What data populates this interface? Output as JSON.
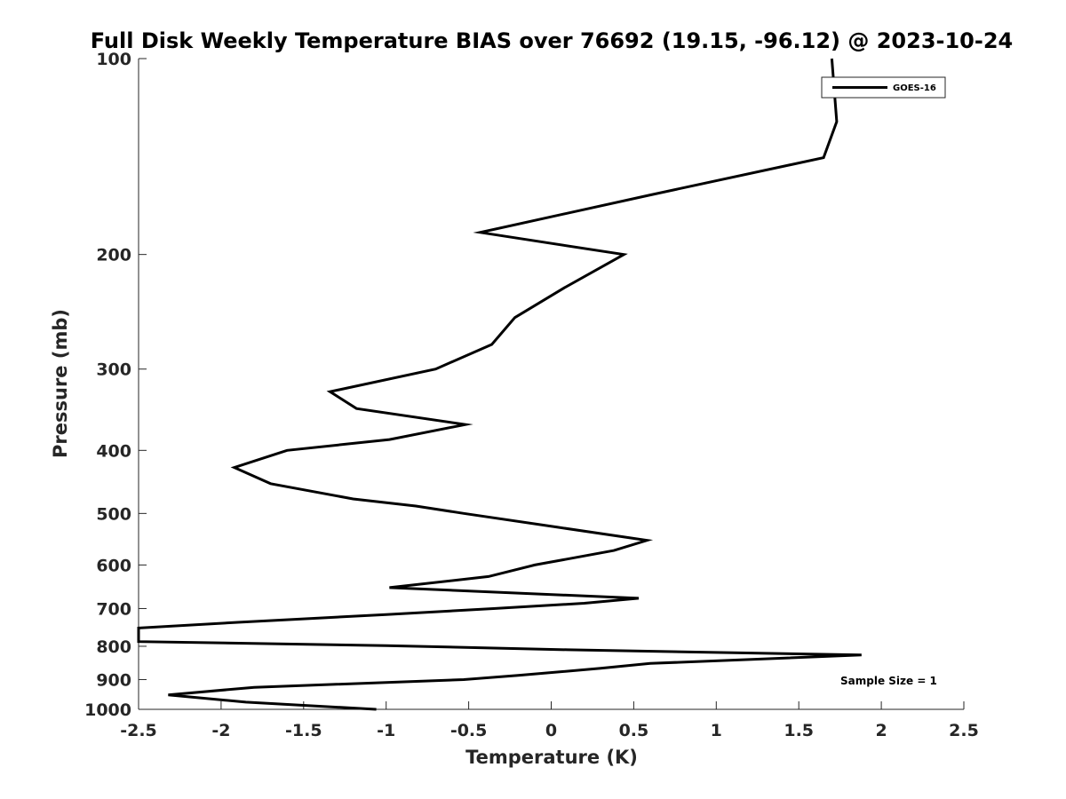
{
  "chart_data": {
    "type": "line",
    "title": "Full Disk Weekly Temperature BIAS over 76692 (19.15, -96.12) @ 2023-10-24",
    "xlabel": "Temperature (K)",
    "ylabel": "Pressure (mb)",
    "xlim": [
      -2.5,
      2.5
    ],
    "ylim": [
      1000,
      100
    ],
    "y_scale": "log",
    "y_reversed": true,
    "x_ticks": [
      "-2.5",
      "-2",
      "-1.5",
      "-1",
      "-0.5",
      "0",
      "0.5",
      "1",
      "1.5",
      "2",
      "2.5"
    ],
    "y_ticks": [
      "100",
      "200",
      "300",
      "400",
      "500",
      "600",
      "700",
      "800",
      "900",
      "1000"
    ],
    "grid": false,
    "legend": {
      "placement": "top-right",
      "entries": [
        "GOES-16"
      ]
    },
    "annotation": "Sample Size = 1",
    "series": [
      {
        "name": "GOES-16",
        "color": "#000000",
        "points": [
          {
            "x": 1.7,
            "y": 100
          },
          {
            "x": 1.73,
            "y": 125
          },
          {
            "x": 1.65,
            "y": 142
          },
          {
            "x": 0.6,
            "y": 162
          },
          {
            "x": -0.43,
            "y": 185
          },
          {
            "x": 0.44,
            "y": 200
          },
          {
            "x": 0.08,
            "y": 225
          },
          {
            "x": -0.22,
            "y": 250
          },
          {
            "x": -0.36,
            "y": 275
          },
          {
            "x": -0.7,
            "y": 300
          },
          {
            "x": -1.34,
            "y": 325
          },
          {
            "x": -1.18,
            "y": 345
          },
          {
            "x": -0.52,
            "y": 365
          },
          {
            "x": -0.98,
            "y": 385
          },
          {
            "x": -1.6,
            "y": 400
          },
          {
            "x": -1.92,
            "y": 425
          },
          {
            "x": -1.7,
            "y": 450
          },
          {
            "x": -1.2,
            "y": 475
          },
          {
            "x": -0.82,
            "y": 487
          },
          {
            "x": -0.53,
            "y": 500
          },
          {
            "x": 0.04,
            "y": 525
          },
          {
            "x": 0.58,
            "y": 550
          },
          {
            "x": 0.38,
            "y": 570
          },
          {
            "x": -0.1,
            "y": 600
          },
          {
            "x": -0.38,
            "y": 625
          },
          {
            "x": -0.98,
            "y": 650
          },
          {
            "x": 0.53,
            "y": 675
          },
          {
            "x": 0.2,
            "y": 687
          },
          {
            "x": -0.35,
            "y": 700
          },
          {
            "x": -1.0,
            "y": 715
          },
          {
            "x": -1.9,
            "y": 735
          },
          {
            "x": -2.5,
            "y": 750
          },
          {
            "x": -2.5,
            "y": 787
          },
          {
            "x": -1.0,
            "y": 798
          },
          {
            "x": 0.1,
            "y": 810
          },
          {
            "x": 1.88,
            "y": 825
          },
          {
            "x": 0.6,
            "y": 850
          },
          {
            "x": 0.3,
            "y": 865
          },
          {
            "x": -0.2,
            "y": 887
          },
          {
            "x": -0.53,
            "y": 900
          },
          {
            "x": -1.8,
            "y": 925
          },
          {
            "x": -2.32,
            "y": 950
          },
          {
            "x": -1.85,
            "y": 975
          },
          {
            "x": -1.06,
            "y": 1000
          }
        ]
      }
    ]
  }
}
